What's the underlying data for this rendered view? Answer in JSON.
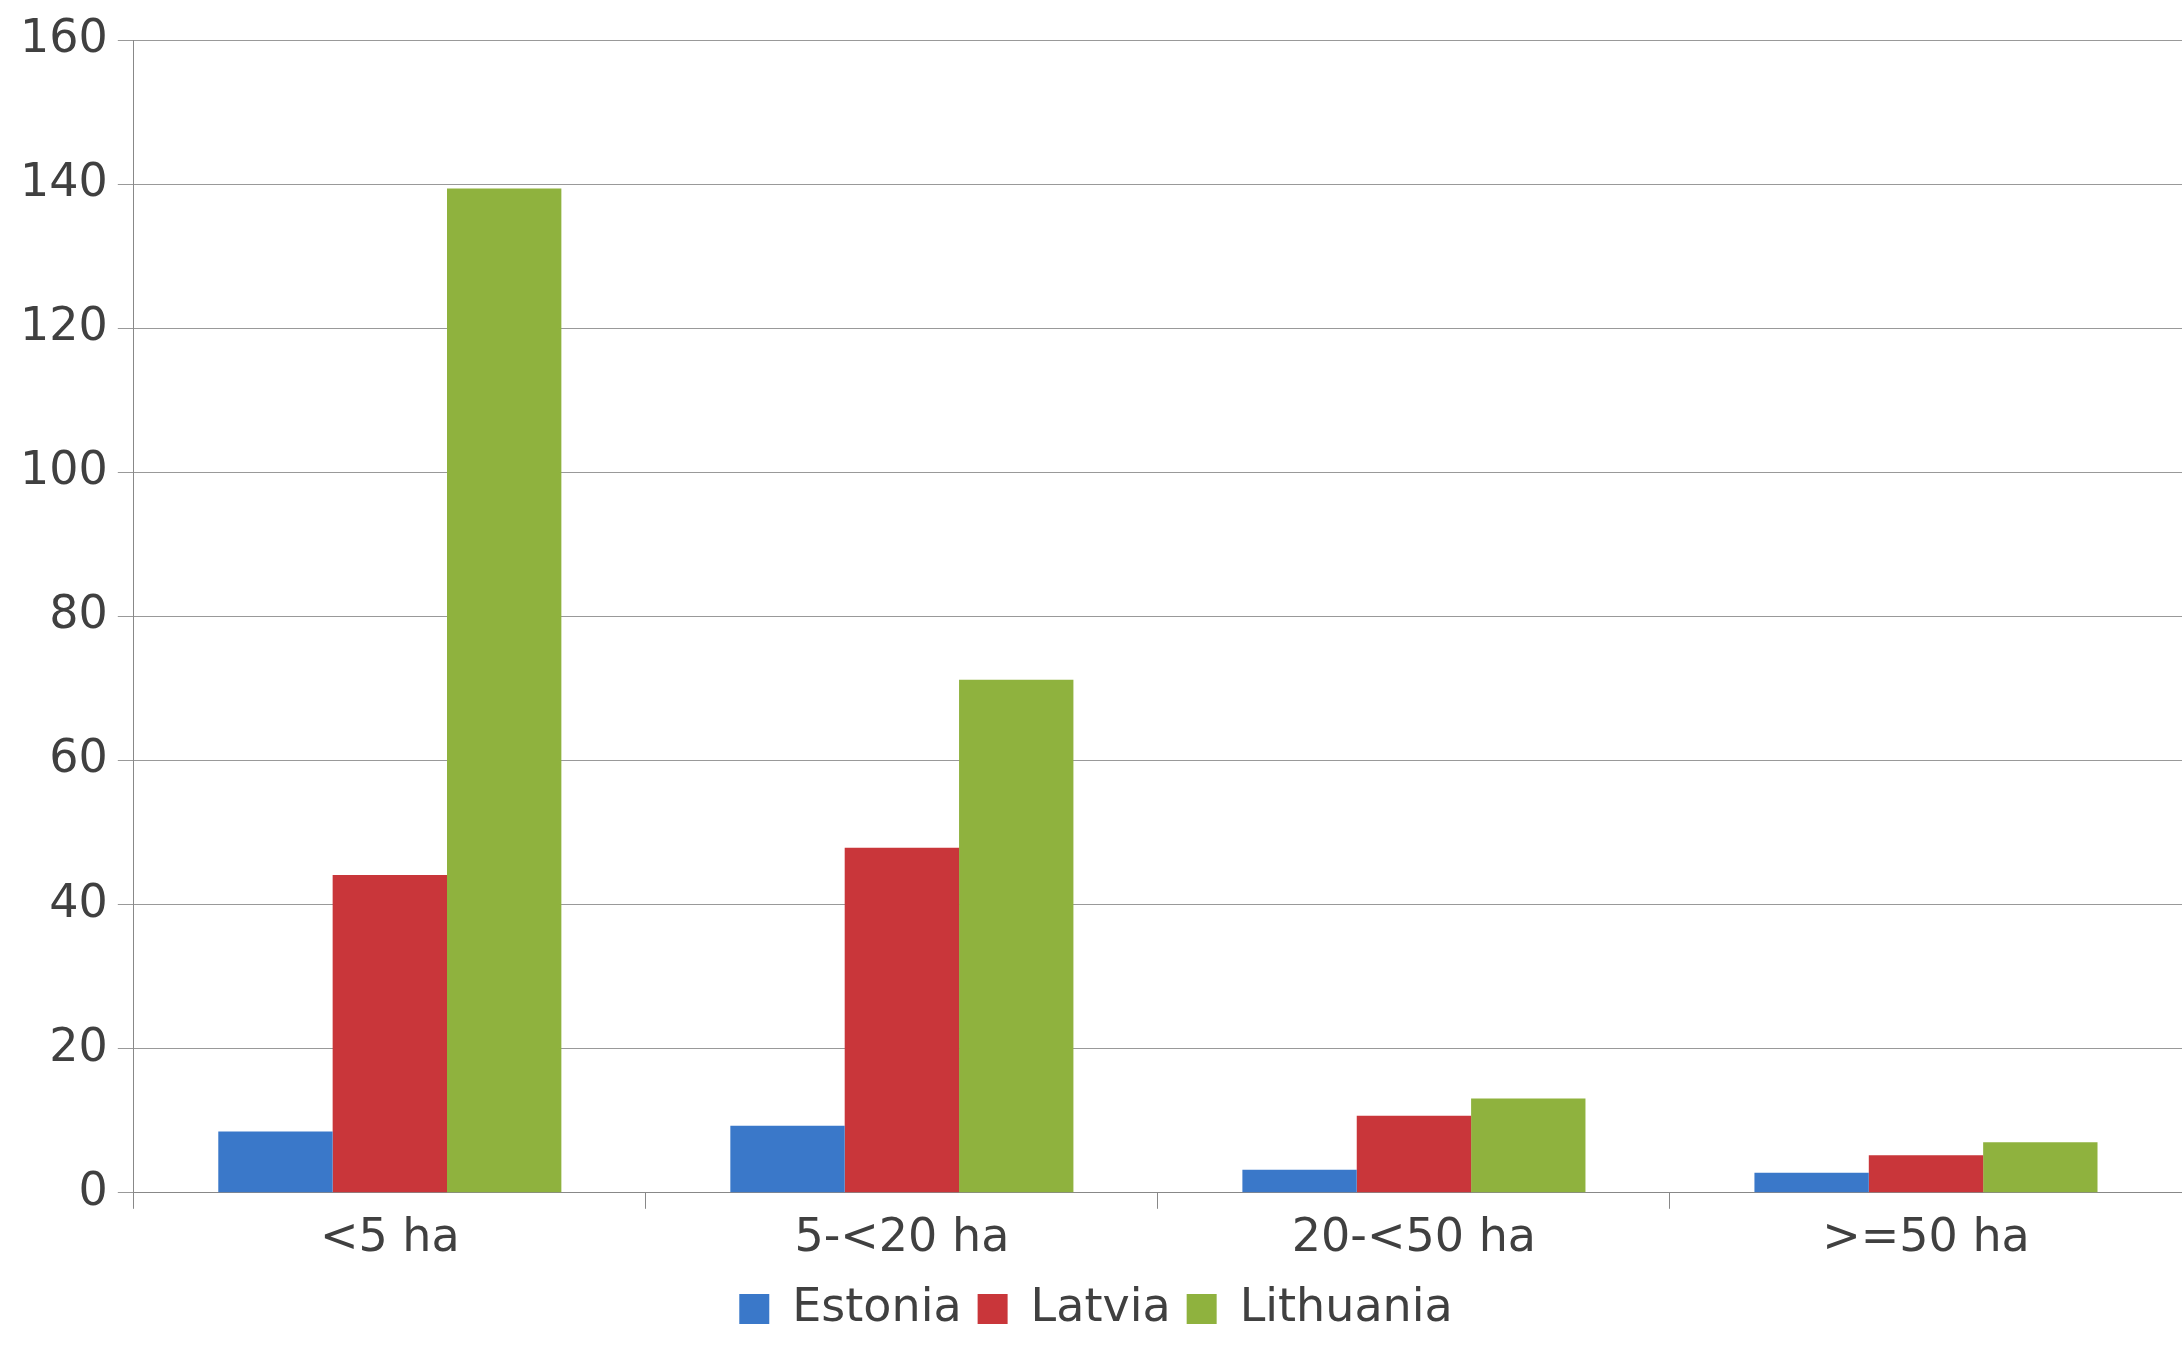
{
  "chart_data": {
    "type": "bar",
    "categories": [
      "<5 ha",
      "5-<20 ha",
      "20-<50 ha",
      ">=50 ha"
    ],
    "series": [
      {
        "name": "Estonia",
        "color": "#3a78c9",
        "values": [
          8.5,
          9.3,
          3.2,
          2.8
        ]
      },
      {
        "name": "Latvia",
        "color": "#c9363a",
        "values": [
          44.1,
          47.9,
          10.7,
          5.2
        ]
      },
      {
        "name": "Lithuania",
        "color": "#8fb23e",
        "values": [
          139.4,
          71.2,
          13.1,
          7.0
        ]
      }
    ],
    "ylim": [
      0,
      160
    ],
    "yticks": [
      0,
      20,
      40,
      60,
      80,
      100,
      120,
      140,
      160
    ],
    "grid": "y",
    "legend": "bottom"
  }
}
